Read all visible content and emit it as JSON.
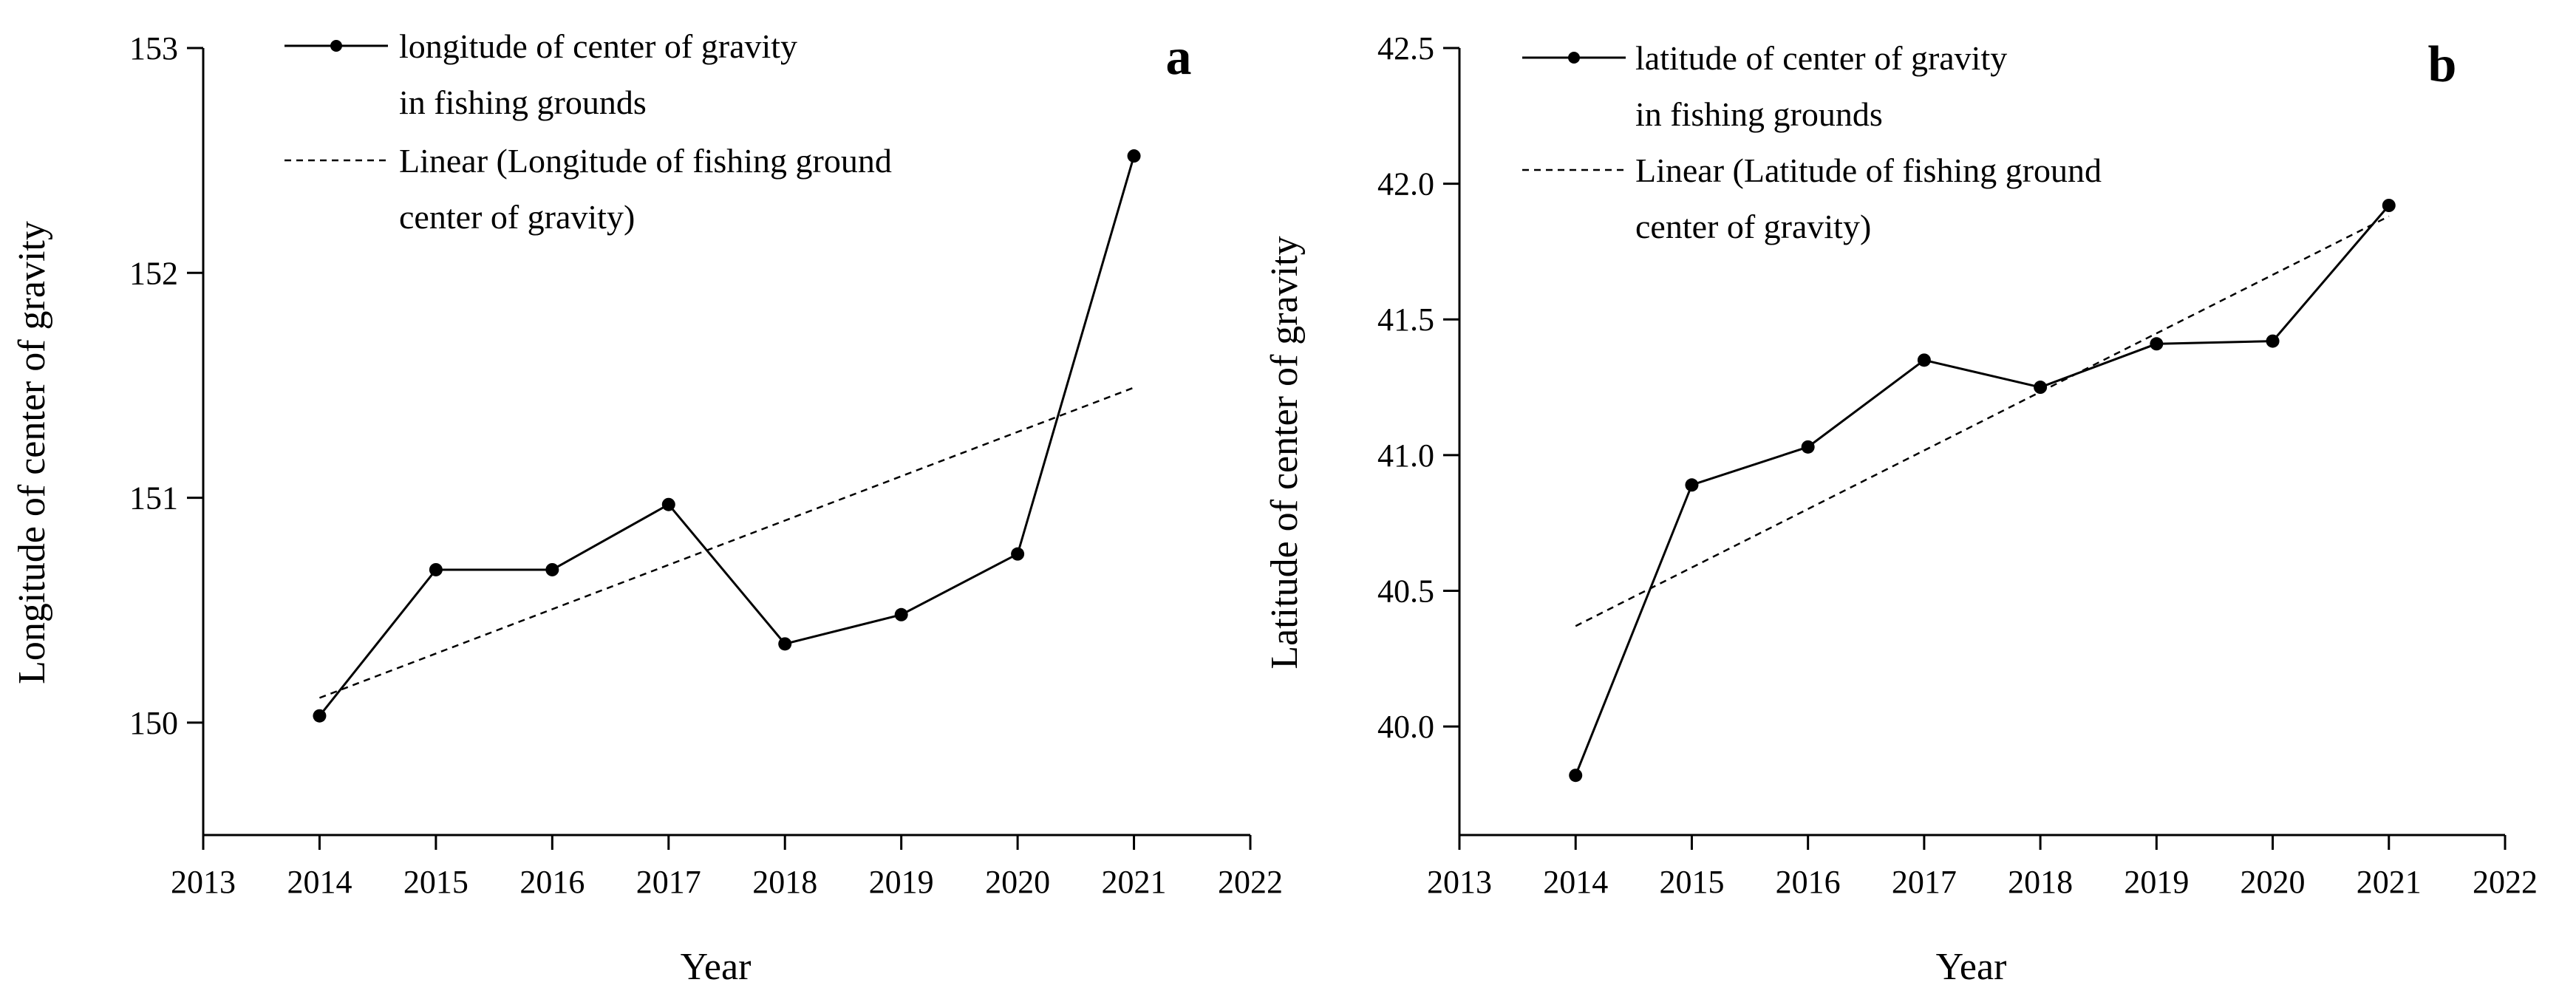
{
  "chart_data": [
    {
      "type": "line",
      "panel_label": "a",
      "xlabel": "Year",
      "ylabel": "Longitude of center of gravity",
      "xlim": [
        2013,
        2022
      ],
      "ylim": [
        149.5,
        153
      ],
      "xticks": [
        2013,
        2014,
        2015,
        2016,
        2017,
        2018,
        2019,
        2020,
        2021,
        2022
      ],
      "yticks": [
        150,
        151,
        152,
        153
      ],
      "ytick_labels": [
        "150",
        "151",
        "152",
        "153"
      ],
      "series": [
        {
          "name": "longitude of center of gravity in fishing grounds",
          "legend_lines": [
            "longitude of center of gravity",
            "in fishing grounds"
          ],
          "style": "solid-marker",
          "x": [
            2014,
            2015,
            2016,
            2017,
            2018,
            2019,
            2020,
            2021
          ],
          "values": [
            150.03,
            150.68,
            150.68,
            150.97,
            150.35,
            150.48,
            150.75,
            152.52
          ]
        },
        {
          "name": "Linear (Longitude of fishing ground center of gravity)",
          "legend_lines": [
            "Linear (Longitude of fishing ground",
            "center of gravity)"
          ],
          "style": "dashed",
          "x": [
            2014,
            2021
          ],
          "values": [
            150.11,
            151.49
          ]
        }
      ]
    },
    {
      "type": "line",
      "panel_label": "b",
      "xlabel": "Year",
      "ylabel": "Latitude of center of gravity",
      "xlim": [
        2013,
        2022
      ],
      "ylim": [
        39.6,
        42.5
      ],
      "xticks": [
        2013,
        2014,
        2015,
        2016,
        2017,
        2018,
        2019,
        2020,
        2021,
        2022
      ],
      "yticks": [
        40.0,
        40.5,
        41.0,
        41.5,
        42.0,
        42.5
      ],
      "ytick_labels": [
        "40.0",
        "40.5",
        "41.0",
        "41.5",
        "42.0",
        "42.5"
      ],
      "series": [
        {
          "name": "latitude of center of gravity in fishing grounds",
          "legend_lines": [
            "latitude of center of gravity",
            "in fishing grounds"
          ],
          "style": "solid-marker",
          "x": [
            2014,
            2015,
            2016,
            2017,
            2018,
            2019,
            2020,
            2021
          ],
          "values": [
            39.82,
            40.89,
            41.03,
            41.35,
            41.25,
            41.41,
            41.42,
            41.92
          ]
        },
        {
          "name": "Linear (Latitude of fishing ground center of gravity)",
          "legend_lines": [
            "Linear (Latitude of fishing ground",
            "center of gravity)"
          ],
          "style": "dashed",
          "x": [
            2014,
            2021
          ],
          "values": [
            40.37,
            41.88
          ]
        }
      ]
    }
  ]
}
